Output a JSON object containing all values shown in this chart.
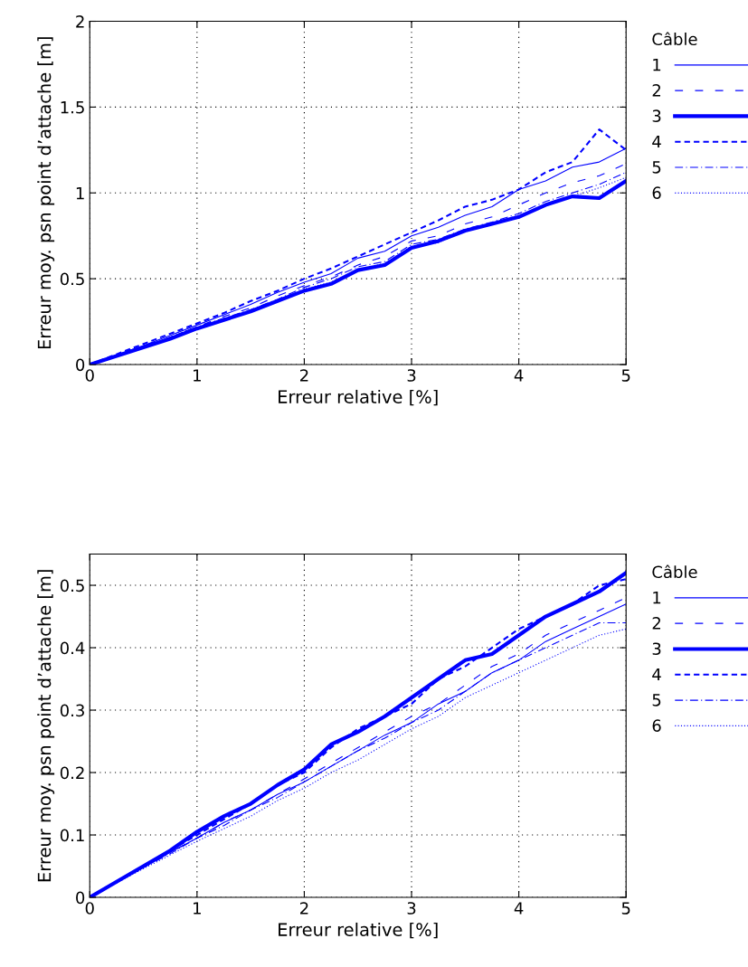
{
  "chart_data": [
    {
      "type": "line",
      "xlabel": "Erreur relative [%]",
      "ylabel": "Erreur moy. psn point d’attache [m]",
      "legend_title": "Câble",
      "legend": "right",
      "grid": true,
      "marker": "none",
      "xlim": [
        0,
        5
      ],
      "xticks": [
        0,
        1,
        2,
        3,
        4,
        5
      ],
      "ylim": [
        0,
        2
      ],
      "yticks": [
        0,
        0.5,
        1,
        1.5,
        2
      ],
      "x": [
        0,
        0.25,
        0.5,
        0.75,
        1,
        1.25,
        1.5,
        1.75,
        2,
        2.25,
        2.5,
        2.75,
        3,
        3.25,
        3.5,
        3.75,
        4,
        4.25,
        4.5,
        4.75,
        5
      ],
      "series": [
        {
          "name": "1",
          "color": "#0000ff",
          "line_style": "solid",
          "values": [
            0,
            0.055,
            0.11,
            0.17,
            0.23,
            0.29,
            0.35,
            0.42,
            0.48,
            0.53,
            0.62,
            0.66,
            0.75,
            0.8,
            0.87,
            0.92,
            1.02,
            1.07,
            1.15,
            1.18,
            1.26
          ]
        },
        {
          "name": "2",
          "color": "#0000ff",
          "line_style": "longdash",
          "values": [
            0,
            0.05,
            0.11,
            0.16,
            0.22,
            0.28,
            0.33,
            0.4,
            0.46,
            0.51,
            0.58,
            0.63,
            0.72,
            0.75,
            0.82,
            0.86,
            0.93,
            1.0,
            1.06,
            1.1,
            1.17
          ]
        },
        {
          "name": "3",
          "color": "#0000ff",
          "line_style": "solid",
          "values": [
            0,
            0.05,
            0.1,
            0.15,
            0.21,
            0.26,
            0.31,
            0.37,
            0.43,
            0.47,
            0.55,
            0.58,
            0.68,
            0.72,
            0.78,
            0.82,
            0.86,
            0.93,
            0.98,
            0.97,
            1.07
          ]
        },
        {
          "name": "4",
          "color": "#0000ff",
          "line_style": "dashed",
          "values": [
            0,
            0.06,
            0.12,
            0.18,
            0.24,
            0.3,
            0.37,
            0.43,
            0.5,
            0.56,
            0.63,
            0.7,
            0.77,
            0.84,
            0.92,
            0.96,
            1.02,
            1.12,
            1.18,
            1.37,
            1.25
          ]
        },
        {
          "name": "5",
          "color": "#0000ff",
          "line_style": "dashdot",
          "values": [
            0,
            0.05,
            0.1,
            0.16,
            0.22,
            0.27,
            0.32,
            0.38,
            0.45,
            0.5,
            0.57,
            0.6,
            0.7,
            0.73,
            0.79,
            0.83,
            0.88,
            0.95,
            1.0,
            1.05,
            1.12
          ]
        },
        {
          "name": "6",
          "color": "#0000ff",
          "line_style": "dotted",
          "values": [
            0,
            0.05,
            0.1,
            0.15,
            0.21,
            0.26,
            0.31,
            0.37,
            0.44,
            0.48,
            0.55,
            0.59,
            0.69,
            0.71,
            0.78,
            0.82,
            0.87,
            0.93,
            0.98,
            1.03,
            1.09
          ]
        }
      ]
    },
    {
      "type": "line",
      "xlabel": "Erreur relative [%]",
      "ylabel": "Erreur moy. psn point d’attache [m]",
      "legend_title": "Câble",
      "legend": "right",
      "grid": true,
      "marker": "none",
      "xlim": [
        0,
        5
      ],
      "xticks": [
        0,
        1,
        2,
        3,
        4,
        5
      ],
      "ylim": [
        0,
        0.55
      ],
      "yticks": [
        0,
        0.1,
        0.2,
        0.3,
        0.4,
        0.5
      ],
      "x": [
        0,
        0.25,
        0.5,
        0.75,
        1,
        1.25,
        1.5,
        1.75,
        2,
        2.25,
        2.5,
        2.75,
        3,
        3.25,
        3.5,
        3.75,
        4,
        4.25,
        4.5,
        4.75,
        5
      ],
      "series": [
        {
          "name": "1",
          "color": "#0000ff",
          "line_style": "solid",
          "values": [
            0,
            0.024,
            0.048,
            0.072,
            0.095,
            0.12,
            0.14,
            0.165,
            0.185,
            0.21,
            0.235,
            0.26,
            0.28,
            0.31,
            0.33,
            0.36,
            0.38,
            0.41,
            0.43,
            0.45,
            0.47
          ]
        },
        {
          "name": "2",
          "color": "#0000ff",
          "line_style": "longdash",
          "values": [
            0,
            0.024,
            0.048,
            0.072,
            0.095,
            0.12,
            0.14,
            0.165,
            0.19,
            0.215,
            0.24,
            0.265,
            0.29,
            0.31,
            0.34,
            0.37,
            0.39,
            0.42,
            0.44,
            0.46,
            0.48
          ]
        },
        {
          "name": "3",
          "color": "#0000ff",
          "line_style": "solid",
          "values": [
            0,
            0.025,
            0.05,
            0.075,
            0.105,
            0.13,
            0.15,
            0.18,
            0.205,
            0.245,
            0.265,
            0.29,
            0.32,
            0.35,
            0.38,
            0.39,
            0.42,
            0.45,
            0.47,
            0.49,
            0.52
          ]
        },
        {
          "name": "4",
          "color": "#0000ff",
          "line_style": "dashed",
          "values": [
            0,
            0.025,
            0.05,
            0.075,
            0.1,
            0.125,
            0.15,
            0.18,
            0.2,
            0.24,
            0.27,
            0.29,
            0.31,
            0.35,
            0.37,
            0.4,
            0.43,
            0.45,
            0.47,
            0.5,
            0.51
          ]
        },
        {
          "name": "5",
          "color": "#0000ff",
          "line_style": "dashdot",
          "values": [
            0,
            0.024,
            0.048,
            0.07,
            0.095,
            0.115,
            0.14,
            0.16,
            0.185,
            0.21,
            0.235,
            0.255,
            0.28,
            0.3,
            0.33,
            0.36,
            0.38,
            0.4,
            0.42,
            0.44,
            0.44
          ]
        },
        {
          "name": "6",
          "color": "#0000ff",
          "line_style": "dotted",
          "values": [
            0,
            0.023,
            0.046,
            0.068,
            0.09,
            0.11,
            0.13,
            0.155,
            0.175,
            0.2,
            0.22,
            0.245,
            0.27,
            0.29,
            0.32,
            0.34,
            0.36,
            0.38,
            0.4,
            0.42,
            0.43
          ]
        }
      ]
    }
  ]
}
